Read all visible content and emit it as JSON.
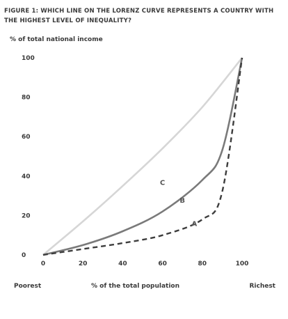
{
  "chart_data": {
    "type": "line",
    "title": "FIGURE 1: WHICH LINE ON THE LORENZ CURVE REPRESENTS A COUNTRY WITH THE HIGHEST LEVEL OF INEQUALITY?",
    "ylabel": "% of total national income",
    "xlabel": "% of the total population",
    "x_left_label": "Poorest",
    "x_right_label": "Richest",
    "xlim": [
      0,
      100
    ],
    "ylim": [
      0,
      100
    ],
    "x_ticks": [
      0,
      20,
      40,
      60,
      80,
      100
    ],
    "y_ticks": [
      0,
      20,
      40,
      60,
      80,
      100
    ],
    "grid": false,
    "series": [
      {
        "name": "C",
        "style": "solid",
        "color": "#d6d6d6",
        "x": [
          0,
          20,
          40,
          60,
          80,
          100
        ],
        "y": [
          0,
          17,
          35,
          54,
          75,
          100
        ]
      },
      {
        "name": "B",
        "style": "solid",
        "color": "#7a7a7a",
        "x": [
          0,
          20,
          40,
          60,
          80,
          90,
          100
        ],
        "y": [
          0,
          5,
          12,
          22,
          38,
          53,
          100
        ]
      },
      {
        "name": "A",
        "style": "dashed",
        "color": "#3d3d3d",
        "x": [
          0,
          20,
          40,
          60,
          80,
          90,
          100
        ],
        "y": [
          0,
          3,
          6,
          10,
          18,
          32,
          100
        ]
      }
    ],
    "annotations": [
      {
        "text": "C",
        "x": 60,
        "y": 37
      },
      {
        "text": "B",
        "x": 70,
        "y": 28
      },
      {
        "text": "A",
        "x": 76,
        "y": 16
      }
    ]
  }
}
